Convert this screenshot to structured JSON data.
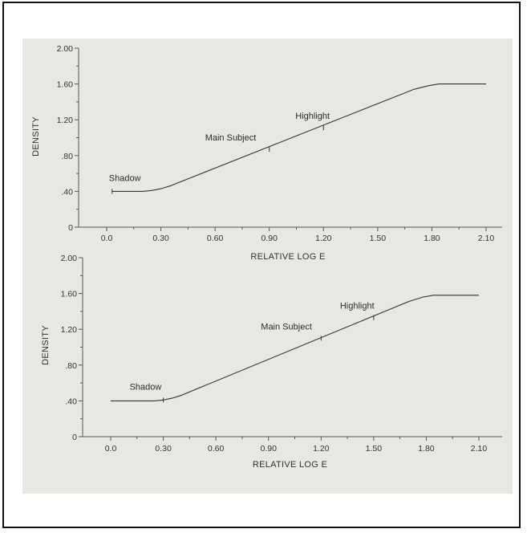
{
  "chart_data": [
    {
      "type": "line",
      "xlabel": "RELATIVE LOG E",
      "ylabel": "DENSITY",
      "xlim": [
        -0.1,
        2.2
      ],
      "ylim": [
        0,
        2.0
      ],
      "x_ticks": [
        0,
        0.3,
        0.6,
        0.9,
        1.2,
        1.5,
        1.8,
        2.1
      ],
      "x_tick_labels": [
        "0.0",
        "0.30",
        "0.60",
        "0.90",
        "1.20",
        "1.50",
        "1.80",
        "2.10"
      ],
      "y_ticks": [
        0,
        0.4,
        0.8,
        1.2,
        1.6,
        2.0
      ],
      "y_tick_labels": [
        "0",
        ".40",
        ".80",
        "1.20",
        "1.60",
        "2.00"
      ],
      "grid": false,
      "series": [
        {
          "x": [
            0.03,
            0.2,
            0.25,
            0.3,
            0.35,
            1.7,
            1.78,
            1.84,
            1.9,
            2.1
          ],
          "y": [
            0.4,
            0.4,
            0.41,
            0.43,
            0.46,
            1.54,
            1.58,
            1.6,
            1.6,
            1.6
          ]
        }
      ],
      "annotations": [
        {
          "text": "Shadow",
          "x": 0.03,
          "y": 0.4
        },
        {
          "text": "Main Subject",
          "x": 0.9,
          "y": 0.87
        },
        {
          "text": "Highlight",
          "x": 1.2,
          "y": 1.11
        }
      ]
    },
    {
      "type": "line",
      "xlabel": "RELATIVE LOG E",
      "ylabel": "DENSITY",
      "xlim": [
        -0.1,
        2.2
      ],
      "ylim": [
        0,
        2.0
      ],
      "x_ticks": [
        0,
        0.3,
        0.6,
        0.9,
        1.2,
        1.5,
        1.8,
        2.1
      ],
      "x_tick_labels": [
        "0.0",
        "0.30",
        "0.60",
        "0.90",
        "1.20",
        "1.50",
        "1.80",
        "2.10"
      ],
      "y_ticks": [
        0,
        0.4,
        0.8,
        1.2,
        1.6,
        2.0
      ],
      "y_tick_labels": [
        "0",
        ".40",
        ".80",
        "1.20",
        "1.60",
        "2.00"
      ],
      "grid": false,
      "series": [
        {
          "x": [
            0.0,
            0.25,
            0.3,
            0.35,
            0.4,
            1.7,
            1.78,
            1.84,
            1.9,
            2.1
          ],
          "y": [
            0.4,
            0.4,
            0.41,
            0.43,
            0.46,
            1.51,
            1.56,
            1.58,
            1.58,
            1.58
          ]
        }
      ],
      "annotations": [
        {
          "text": "Shadow",
          "x": 0.3,
          "y": 0.41
        },
        {
          "text": "Main Subject",
          "x": 1.2,
          "y": 1.1
        },
        {
          "text": "Highlight",
          "x": 1.5,
          "y": 1.33
        }
      ]
    }
  ]
}
